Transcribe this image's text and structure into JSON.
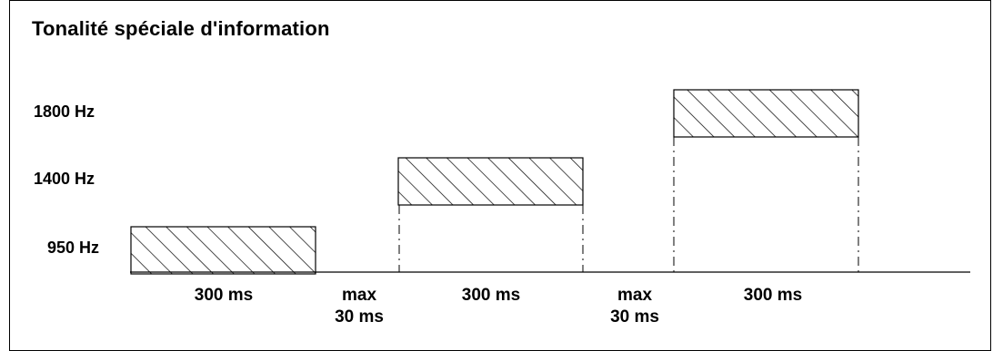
{
  "title": "Tonalité spéciale d'information",
  "frequency_labels": [
    "1800 Hz",
    "1400 Hz",
    "950 Hz"
  ],
  "timing": {
    "tone1": "300 ms",
    "gap1_line1": "max",
    "gap1_line2": "30 ms",
    "tone2": "300 ms",
    "gap2_line1": "max",
    "gap2_line2": "30 ms",
    "tone3": "300 ms"
  }
}
